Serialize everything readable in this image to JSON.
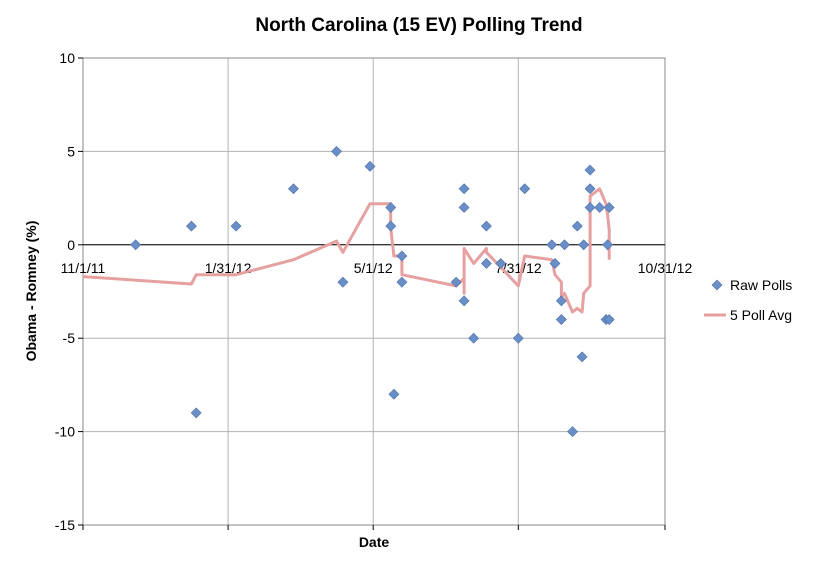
{
  "chart_data": {
    "type": "scatter",
    "title": "North Carolina (15 EV) Polling Trend",
    "xlabel": "Date",
    "ylabel": "Obama - Romney (%)",
    "xlim": [
      "2011-11-01",
      "2012-10-31"
    ],
    "ylim": [
      -15,
      10
    ],
    "y_ticks": [
      -15,
      -10,
      -5,
      0,
      5,
      10
    ],
    "x_ticks": [
      {
        "date": "2011-11-01",
        "label": "11/1/11"
      },
      {
        "date": "2012-01-31",
        "label": "1/31/12"
      },
      {
        "date": "2012-05-01",
        "label": "5/1/12"
      },
      {
        "date": "2012-07-31",
        "label": "7/31/12"
      },
      {
        "date": "2012-10-31",
        "label": "10/31/12"
      }
    ],
    "grid": true,
    "legend_position": "right",
    "series": [
      {
        "name": "Raw Polls",
        "kind": "scatter",
        "marker": "diamond",
        "color": "#6a8fc8",
        "points": [
          {
            "x": "2011-12-04",
            "y": 0
          },
          {
            "x": "2012-01-08",
            "y": 1
          },
          {
            "x": "2012-01-11",
            "y": -9
          },
          {
            "x": "2012-02-05",
            "y": 1
          },
          {
            "x": "2012-03-12",
            "y": 3
          },
          {
            "x": "2012-04-08",
            "y": 5
          },
          {
            "x": "2012-04-12",
            "y": -2
          },
          {
            "x": "2012-04-29",
            "y": 4.2
          },
          {
            "x": "2012-05-12",
            "y": 2
          },
          {
            "x": "2012-05-12",
            "y": 1
          },
          {
            "x": "2012-05-14",
            "y": -8
          },
          {
            "x": "2012-05-19",
            "y": -0.6
          },
          {
            "x": "2012-05-19",
            "y": -2
          },
          {
            "x": "2012-06-22",
            "y": -2
          },
          {
            "x": "2012-06-27",
            "y": 3
          },
          {
            "x": "2012-06-27",
            "y": 2
          },
          {
            "x": "2012-06-27",
            "y": -3
          },
          {
            "x": "2012-07-03",
            "y": -5
          },
          {
            "x": "2012-07-11",
            "y": 1
          },
          {
            "x": "2012-07-11",
            "y": -1
          },
          {
            "x": "2012-07-20",
            "y": -1
          },
          {
            "x": "2012-07-31",
            "y": -5
          },
          {
            "x": "2012-08-04",
            "y": 3
          },
          {
            "x": "2012-08-21",
            "y": 0
          },
          {
            "x": "2012-08-23",
            "y": -1
          },
          {
            "x": "2012-08-27",
            "y": -3
          },
          {
            "x": "2012-08-27",
            "y": -4
          },
          {
            "x": "2012-08-29",
            "y": 0
          },
          {
            "x": "2012-09-03",
            "y": -10
          },
          {
            "x": "2012-09-06",
            "y": 1
          },
          {
            "x": "2012-09-09",
            "y": -6
          },
          {
            "x": "2012-09-10",
            "y": 0
          },
          {
            "x": "2012-09-14",
            "y": 4
          },
          {
            "x": "2012-09-14",
            "y": 3
          },
          {
            "x": "2012-09-14",
            "y": 2
          },
          {
            "x": "2012-09-20",
            "y": 2
          },
          {
            "x": "2012-09-24",
            "y": -4
          },
          {
            "x": "2012-09-25",
            "y": 0
          },
          {
            "x": "2012-09-26",
            "y": 2
          },
          {
            "x": "2012-09-26",
            "y": -4
          }
        ]
      },
      {
        "name": "5 Poll Avg",
        "kind": "line",
        "color": "#e6a0a0",
        "points": [
          {
            "x": "2011-11-01",
            "y": -1.7
          },
          {
            "x": "2012-01-08",
            "y": -2.1
          },
          {
            "x": "2012-01-11",
            "y": -1.6
          },
          {
            "x": "2012-02-05",
            "y": -1.6
          },
          {
            "x": "2012-03-12",
            "y": -0.8
          },
          {
            "x": "2012-04-08",
            "y": 0.2
          },
          {
            "x": "2012-04-12",
            "y": -0.4
          },
          {
            "x": "2012-04-29",
            "y": 2.2
          },
          {
            "x": "2012-05-12",
            "y": 2.2
          },
          {
            "x": "2012-05-12",
            "y": 0.9
          },
          {
            "x": "2012-05-14",
            "y": -0.6
          },
          {
            "x": "2012-05-19",
            "y": -0.6
          },
          {
            "x": "2012-05-19",
            "y": -1.6
          },
          {
            "x": "2012-06-22",
            "y": -2.2
          },
          {
            "x": "2012-06-27",
            "y": -1.8
          },
          {
            "x": "2012-06-27",
            "y": -2.6
          },
          {
            "x": "2012-06-27",
            "y": -0.2
          },
          {
            "x": "2012-07-03",
            "y": -1
          },
          {
            "x": "2012-07-11",
            "y": -0.2
          },
          {
            "x": "2012-07-11",
            "y": -0.4
          },
          {
            "x": "2012-07-20",
            "y": -1.2
          },
          {
            "x": "2012-07-31",
            "y": -2.2
          },
          {
            "x": "2012-08-04",
            "y": -0.6
          },
          {
            "x": "2012-08-21",
            "y": -0.8
          },
          {
            "x": "2012-08-23",
            "y": -1.6
          },
          {
            "x": "2012-08-27",
            "y": -2
          },
          {
            "x": "2012-08-27",
            "y": -2.8
          },
          {
            "x": "2012-08-29",
            "y": -2.6
          },
          {
            "x": "2012-09-03",
            "y": -3.6
          },
          {
            "x": "2012-09-06",
            "y": -3.4
          },
          {
            "x": "2012-09-09",
            "y": -3.6
          },
          {
            "x": "2012-09-10",
            "y": -2.6
          },
          {
            "x": "2012-09-14",
            "y": -2.2
          },
          {
            "x": "2012-09-14",
            "y": 1.4
          },
          {
            "x": "2012-09-14",
            "y": 2.6
          },
          {
            "x": "2012-09-20",
            "y": 3
          },
          {
            "x": "2012-09-24",
            "y": 2.2
          },
          {
            "x": "2012-09-25",
            "y": 1.6
          },
          {
            "x": "2012-09-26",
            "y": 0.8
          },
          {
            "x": "2012-09-26",
            "y": -0.8
          }
        ]
      }
    ]
  }
}
